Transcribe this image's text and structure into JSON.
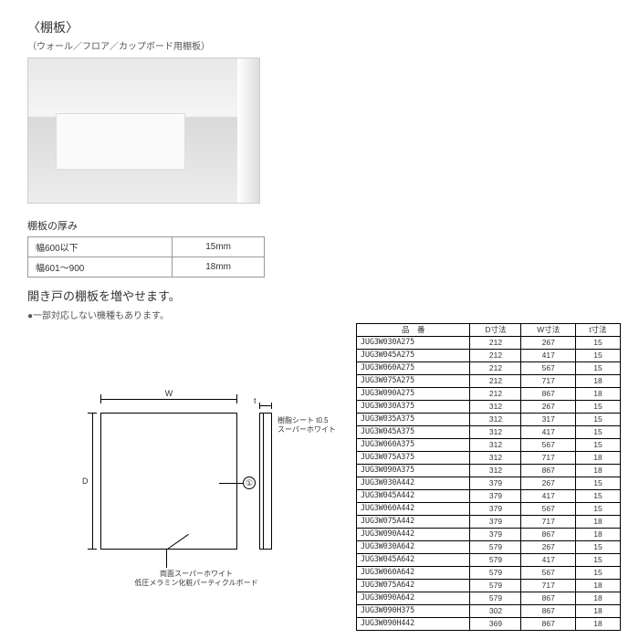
{
  "header": {
    "title": "〈棚板〉",
    "subtitle": "（ウォール／フロア／カップボード用棚板）"
  },
  "thickness": {
    "heading": "棚板の厚み",
    "rows": [
      {
        "range": "幅600以下",
        "value": "15mm"
      },
      {
        "range": "幅601〜900",
        "value": "18mm"
      }
    ]
  },
  "caption": "開き戸の棚板を増やせます。",
  "note": "●一部対応しない機種もあります。",
  "diagram": {
    "w_label": "W",
    "d_label": "D",
    "t_label": "t",
    "callout_num": "①",
    "edge_sheet": "樹脂シート t0.5",
    "edge_color": "スーパーホワイト",
    "material_line1": "両面スーパーホワイト",
    "material_line2": "低圧メラミン化粧パーティクルボード"
  },
  "spec_table": {
    "headers": [
      "品　番",
      "D寸法",
      "W寸法",
      "t寸法"
    ],
    "rows": [
      [
        "JUG3W030A275",
        "212",
        "267",
        "15"
      ],
      [
        "JUG3W045A275",
        "212",
        "417",
        "15"
      ],
      [
        "JUG3W060A275",
        "212",
        "567",
        "15"
      ],
      [
        "JUG3W075A275",
        "212",
        "717",
        "18"
      ],
      [
        "JUG3W090A275",
        "212",
        "867",
        "18"
      ],
      [
        "JUG3W030A375",
        "312",
        "267",
        "15"
      ],
      [
        "JUG3W035A375",
        "312",
        "317",
        "15"
      ],
      [
        "JUG3W045A375",
        "312",
        "417",
        "15"
      ],
      [
        "JUG3W060A375",
        "312",
        "567",
        "15"
      ],
      [
        "JUG3W075A375",
        "312",
        "717",
        "18"
      ],
      [
        "JUG3W090A375",
        "312",
        "867",
        "18"
      ],
      [
        "JUG3W030A442",
        "379",
        "267",
        "15"
      ],
      [
        "JUG3W045A442",
        "379",
        "417",
        "15"
      ],
      [
        "JUG3W060A442",
        "379",
        "567",
        "15"
      ],
      [
        "JUG3W075A442",
        "379",
        "717",
        "18"
      ],
      [
        "JUG3W090A442",
        "379",
        "867",
        "18"
      ],
      [
        "JUG3W030A642",
        "579",
        "267",
        "15"
      ],
      [
        "JUG3W045A642",
        "579",
        "417",
        "15"
      ],
      [
        "JUG3W060A642",
        "579",
        "567",
        "15"
      ],
      [
        "JUG3W075A642",
        "579",
        "717",
        "18"
      ],
      [
        "JUG3W090A642",
        "579",
        "867",
        "18"
      ],
      [
        "JUG3W090H375",
        "302",
        "867",
        "18"
      ],
      [
        "JUG3W090H442",
        "369",
        "867",
        "18"
      ]
    ]
  }
}
